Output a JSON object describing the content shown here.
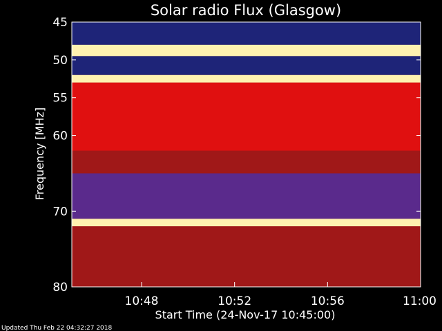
{
  "chart_data": {
    "type": "heatmap",
    "title": "Solar radio Flux (Glasgow)",
    "ylabel": "Frequency [MHz]",
    "xlabel": "Start Time (24-Nov-17 10:45:00)",
    "y_axis": {
      "min": 45,
      "max": 80,
      "inverted": true,
      "tick_labels": [
        "45",
        "50",
        "55",
        "60",
        "70",
        "80"
      ],
      "tick_values": [
        45,
        50,
        55,
        60,
        70,
        80
      ]
    },
    "x_axis": {
      "min_minutes": 0,
      "max_minutes": 15,
      "tick_labels": [
        "10:48",
        "10:52",
        "10:56",
        "11:00"
      ],
      "tick_minutes": [
        3,
        7,
        11,
        15
      ]
    },
    "colormap": {
      "low": "#1e2478",
      "mid_low": "#5a2a8c",
      "mid": "#a01818",
      "high": "#e01010",
      "peak": "#fff2b0"
    },
    "bands": [
      {
        "from_mhz": 45.0,
        "to_mhz": 48.0,
        "level": "very-low"
      },
      {
        "from_mhz": 48.0,
        "to_mhz": 49.5,
        "level": "bright-line"
      },
      {
        "from_mhz": 49.5,
        "to_mhz": 52.0,
        "level": "low"
      },
      {
        "from_mhz": 52.0,
        "to_mhz": 53.0,
        "level": "bright-line"
      },
      {
        "from_mhz": 53.0,
        "to_mhz": 62.0,
        "level": "high"
      },
      {
        "from_mhz": 62.0,
        "to_mhz": 65.0,
        "level": "mid"
      },
      {
        "from_mhz": 65.0,
        "to_mhz": 71.0,
        "level": "mid-low"
      },
      {
        "from_mhz": 71.0,
        "to_mhz": 72.0,
        "level": "bright-line"
      },
      {
        "from_mhz": 72.0,
        "to_mhz": 80.0,
        "level": "mid"
      }
    ]
  },
  "footer": {
    "updated": "Updated Thu Feb 22 04:32:27 2018"
  }
}
